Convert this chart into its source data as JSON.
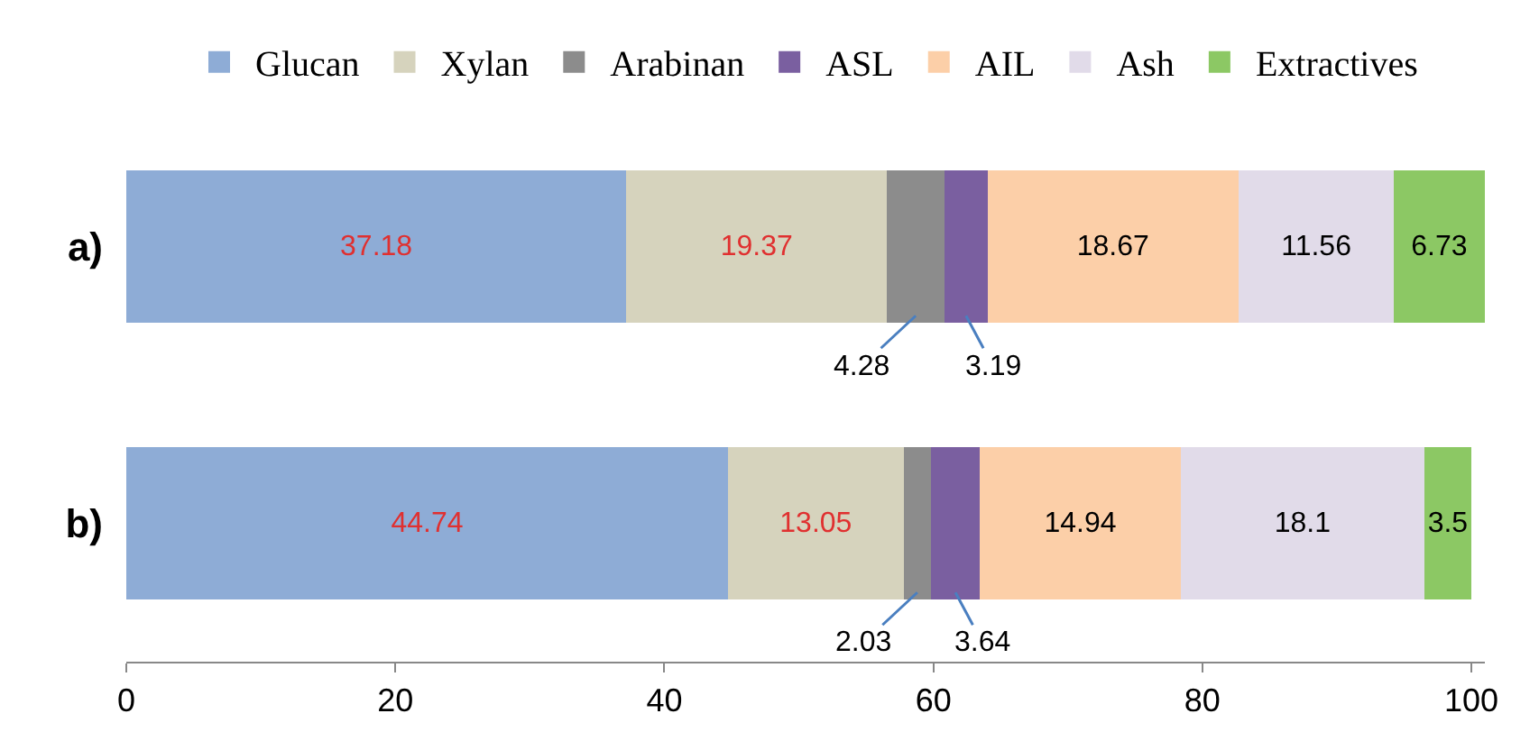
{
  "chart_data": {
    "type": "bar",
    "orientation": "horizontal",
    "stacked": true,
    "categories": [
      "a)",
      "b)"
    ],
    "series": [
      {
        "name": "Glucan",
        "color": "#8eacd6",
        "values": [
          37.18,
          44.74
        ]
      },
      {
        "name": "Xylan",
        "color": "#d6d3bd",
        "values": [
          19.37,
          13.05
        ]
      },
      {
        "name": "Arabinan",
        "color": "#8c8c8c",
        "values": [
          4.28,
          2.03
        ]
      },
      {
        "name": "ASL",
        "color": "#7a5fa0",
        "values": [
          3.19,
          3.64
        ]
      },
      {
        "name": "AIL",
        "color": "#fccfa8",
        "values": [
          18.67,
          14.94
        ]
      },
      {
        "name": "Ash",
        "color": "#e1dbe9",
        "values": [
          11.56,
          18.1
        ]
      },
      {
        "name": "Extractives",
        "color": "#8cc864",
        "values": [
          6.73,
          3.5
        ]
      }
    ],
    "xlim": [
      0,
      101
    ],
    "xticks": [
      0,
      20,
      40,
      60,
      80,
      100
    ],
    "legend": "top",
    "data_labels": true
  }
}
